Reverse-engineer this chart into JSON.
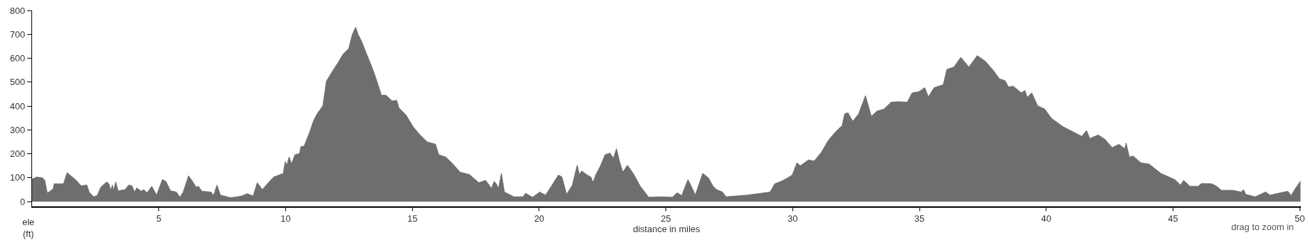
{
  "chart_data": {
    "type": "area",
    "xlabel": "distance in miles",
    "ylabel": "ele\n(ft)",
    "annotations": [
      "drag to zoom in"
    ],
    "x": [
      0,
      0.18,
      0.41,
      0.5,
      0.6,
      0.83,
      0.87,
      1.24,
      1.38,
      1.74,
      1.93,
      2.16,
      2.25,
      2.43,
      2.57,
      2.71,
      2.94,
      3.03,
      3.1,
      3.17,
      3.21,
      3.3,
      3.39,
      3.67,
      3.81,
      3.94,
      4.04,
      4.13,
      4.31,
      4.4,
      4.54,
      4.72,
      4.91,
      5.14,
      5.28,
      5.46,
      5.69,
      5.83,
      5.96,
      6.17,
      6.33,
      6.47,
      6.56,
      6.7,
      7.06,
      7.16,
      7.29,
      7.43,
      7.84,
      8.26,
      8.49,
      8.72,
      8.88,
      9.08,
      9.36,
      9.54,
      9.91,
      9.98,
      10.05,
      10.14,
      10.23,
      10.37,
      10.55,
      10.6,
      10.73,
      10.96,
      11.1,
      11.24,
      11.47,
      11.61,
      11.89,
      12.07,
      12.26,
      12.49,
      12.63,
      12.76,
      12.86,
      13.0,
      13.18,
      13.37,
      13.55,
      13.78,
      13.96,
      14.2,
      14.38,
      14.47,
      14.75,
      15.03,
      15.3,
      15.58,
      15.91,
      16.04,
      16.32,
      16.6,
      16.88,
      17.25,
      17.62,
      17.89,
      18.12,
      18.22,
      18.31,
      18.4,
      18.51,
      18.63,
      19.0,
      19.37,
      19.46,
      19.74,
      20.02,
      20.25,
      20.48,
      20.76,
      20.9,
      21.08,
      21.31,
      21.5,
      21.59,
      21.68,
      21.87,
      22.05,
      22.12,
      22.24,
      22.42,
      22.6,
      22.79,
      22.93,
      23.05,
      23.16,
      23.3,
      23.48,
      23.71,
      23.99,
      24.32,
      24.8,
      25.26,
      25.44,
      25.62,
      25.87,
      26.04,
      26.16,
      26.45,
      26.68,
      26.86,
      27.0,
      27.23,
      27.37,
      27.73,
      28.19,
      28.65,
      29.11,
      29.29,
      29.57,
      29.8,
      29.98,
      30.17,
      30.3,
      30.62,
      30.85,
      31.13,
      31.4,
      31.68,
      31.95,
      32.05,
      32.18,
      32.37,
      32.6,
      32.87,
      33.1,
      33.33,
      33.6,
      33.88,
      34.16,
      34.52,
      34.71,
      34.98,
      35.21,
      35.35,
      35.58,
      35.94,
      36.08,
      36.36,
      36.63,
      36.95,
      37.28,
      37.6,
      37.92,
      38.15,
      38.38,
      38.51,
      38.7,
      39.02,
      39.16,
      39.25,
      39.43,
      39.66,
      39.94,
      40.21,
      40.67,
      41.04,
      41.4,
      41.59,
      41.72,
      42.05,
      42.32,
      42.6,
      42.87,
      43.1,
      43.15,
      43.28,
      43.42,
      43.74,
      44.06,
      44.52,
      45.07,
      45.3,
      45.42,
      45.67,
      45.99,
      46.13,
      46.54,
      46.72,
      46.91,
      47.37,
      47.69,
      47.78,
      47.87,
      48.24,
      48.65,
      48.83,
      49.16,
      49.53,
      49.66,
      49.8,
      50.03
    ],
    "values": [
      94,
      103,
      99,
      89,
      35,
      53,
      74,
      74,
      121,
      89,
      66,
      69,
      40,
      20,
      25,
      60,
      82,
      74,
      47,
      69,
      45,
      82,
      45,
      50,
      69,
      66,
      40,
      57,
      43,
      50,
      37,
      64,
      27,
      92,
      84,
      45,
      40,
      18,
      40,
      108,
      84,
      60,
      64,
      43,
      40,
      25,
      69,
      27,
      16,
      23,
      33,
      23,
      79,
      50,
      84,
      103,
      118,
      167,
      152,
      187,
      157,
      196,
      201,
      230,
      232,
      294,
      338,
      367,
      401,
      504,
      553,
      582,
      616,
      641,
      699,
      730,
      699,
      670,
      621,
      572,
      520,
      445,
      445,
      421,
      424,
      392,
      362,
      313,
      279,
      250,
      240,
      196,
      186,
      157,
      123,
      113,
      79,
      89,
      55,
      84,
      74,
      55,
      118,
      40,
      20,
      20,
      35,
      18,
      40,
      27,
      64,
      111,
      103,
      30,
      69,
      152,
      113,
      128,
      113,
      102,
      79,
      113,
      150,
      196,
      203,
      181,
      221,
      171,
      123,
      152,
      118,
      64,
      18,
      20,
      18,
      37,
      25,
      92,
      55,
      27,
      118,
      99,
      64,
      50,
      40,
      20,
      23,
      27,
      33,
      40,
      74,
      86,
      99,
      111,
      162,
      150,
      174,
      170,
      206,
      255,
      291,
      318,
      367,
      372,
      336,
      367,
      443,
      357,
      379,
      387,
      416,
      418,
      416,
      455,
      460,
      477,
      438,
      477,
      489,
      553,
      563,
      604,
      563,
      611,
      587,
      548,
      514,
      506,
      480,
      483,
      455,
      465,
      436,
      455,
      401,
      387,
      348,
      313,
      293,
      273,
      297,
      264,
      279,
      260,
      226,
      240,
      221,
      245,
      186,
      191,
      162,
      157,
      118,
      92,
      69,
      89,
      64,
      64,
      76,
      74,
      64,
      47,
      47,
      40,
      50,
      30,
      20,
      40,
      27,
      35,
      43,
      25,
      50,
      86
    ],
    "color": "#6e6e6e",
    "xlim": [
      0,
      50.05
    ],
    "xticks": [
      5,
      10,
      15,
      20,
      25,
      30,
      35,
      40,
      45,
      50
    ],
    "ylim": [
      -20,
      800
    ],
    "yticks": [
      0,
      100,
      200,
      300,
      400,
      500,
      600,
      700,
      800
    ],
    "grid": false,
    "legend": false
  }
}
